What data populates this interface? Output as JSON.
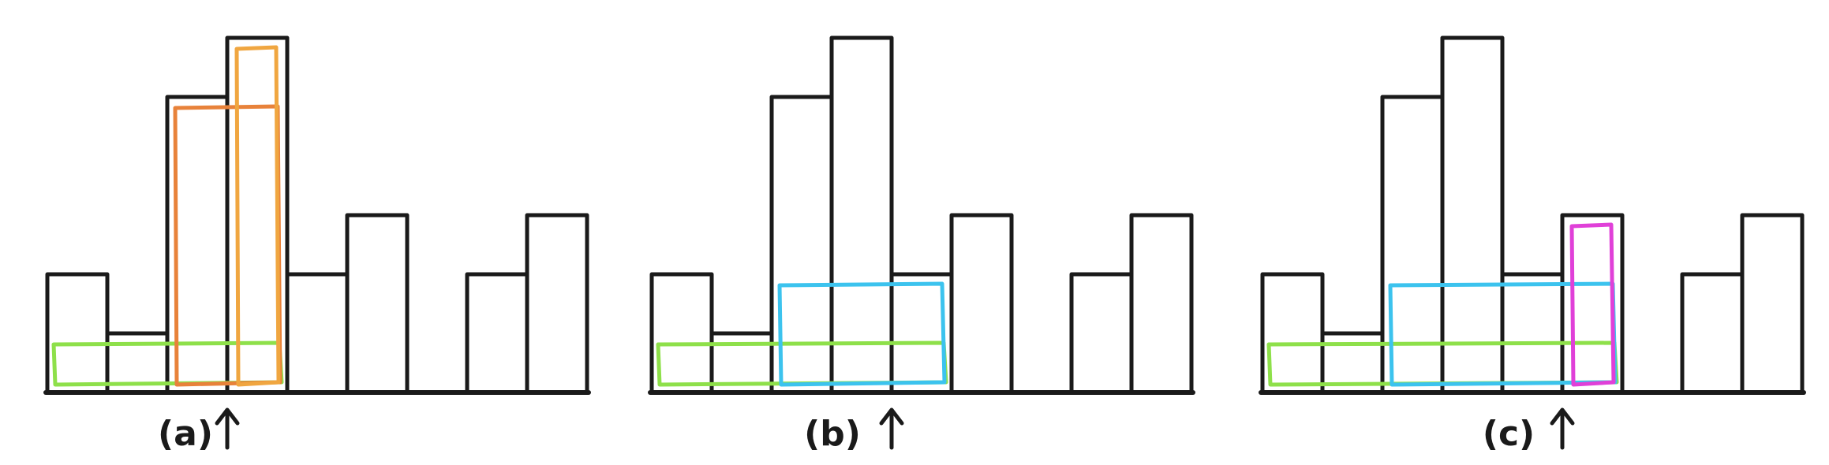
{
  "chart_data": {
    "type": "bar",
    "values": [
      2,
      1,
      5,
      6,
      2,
      3,
      0,
      2,
      3
    ],
    "ylim": [
      0,
      6
    ]
  },
  "panels": [
    {
      "caption": "(a)",
      "pointer_bar": 3,
      "highlights": [
        {
          "color": "#8ee04a",
          "from_bar": 0,
          "to_bar": 3,
          "height": 1
        },
        {
          "color": "#e8823a",
          "from_bar": 2,
          "to_bar": 3,
          "height": 5
        },
        {
          "color": "#f0a640",
          "from_bar": 3,
          "to_bar": 3,
          "height": 6
        }
      ]
    },
    {
      "caption": "(b)",
      "pointer_bar": 4,
      "highlights": [
        {
          "color": "#8ee04a",
          "from_bar": 0,
          "to_bar": 4,
          "height": 1
        },
        {
          "color": "#3cc3ee",
          "from_bar": 2,
          "to_bar": 4,
          "height": 2
        }
      ]
    },
    {
      "caption": "(c)",
      "pointer_bar": 5,
      "highlights": [
        {
          "color": "#8ee04a",
          "from_bar": 0,
          "to_bar": 5,
          "height": 1
        },
        {
          "color": "#3cc3ee",
          "from_bar": 2,
          "to_bar": 5,
          "height": 2
        },
        {
          "color": "#e040d8",
          "from_bar": 5,
          "to_bar": 5,
          "height": 3
        }
      ]
    }
  ]
}
